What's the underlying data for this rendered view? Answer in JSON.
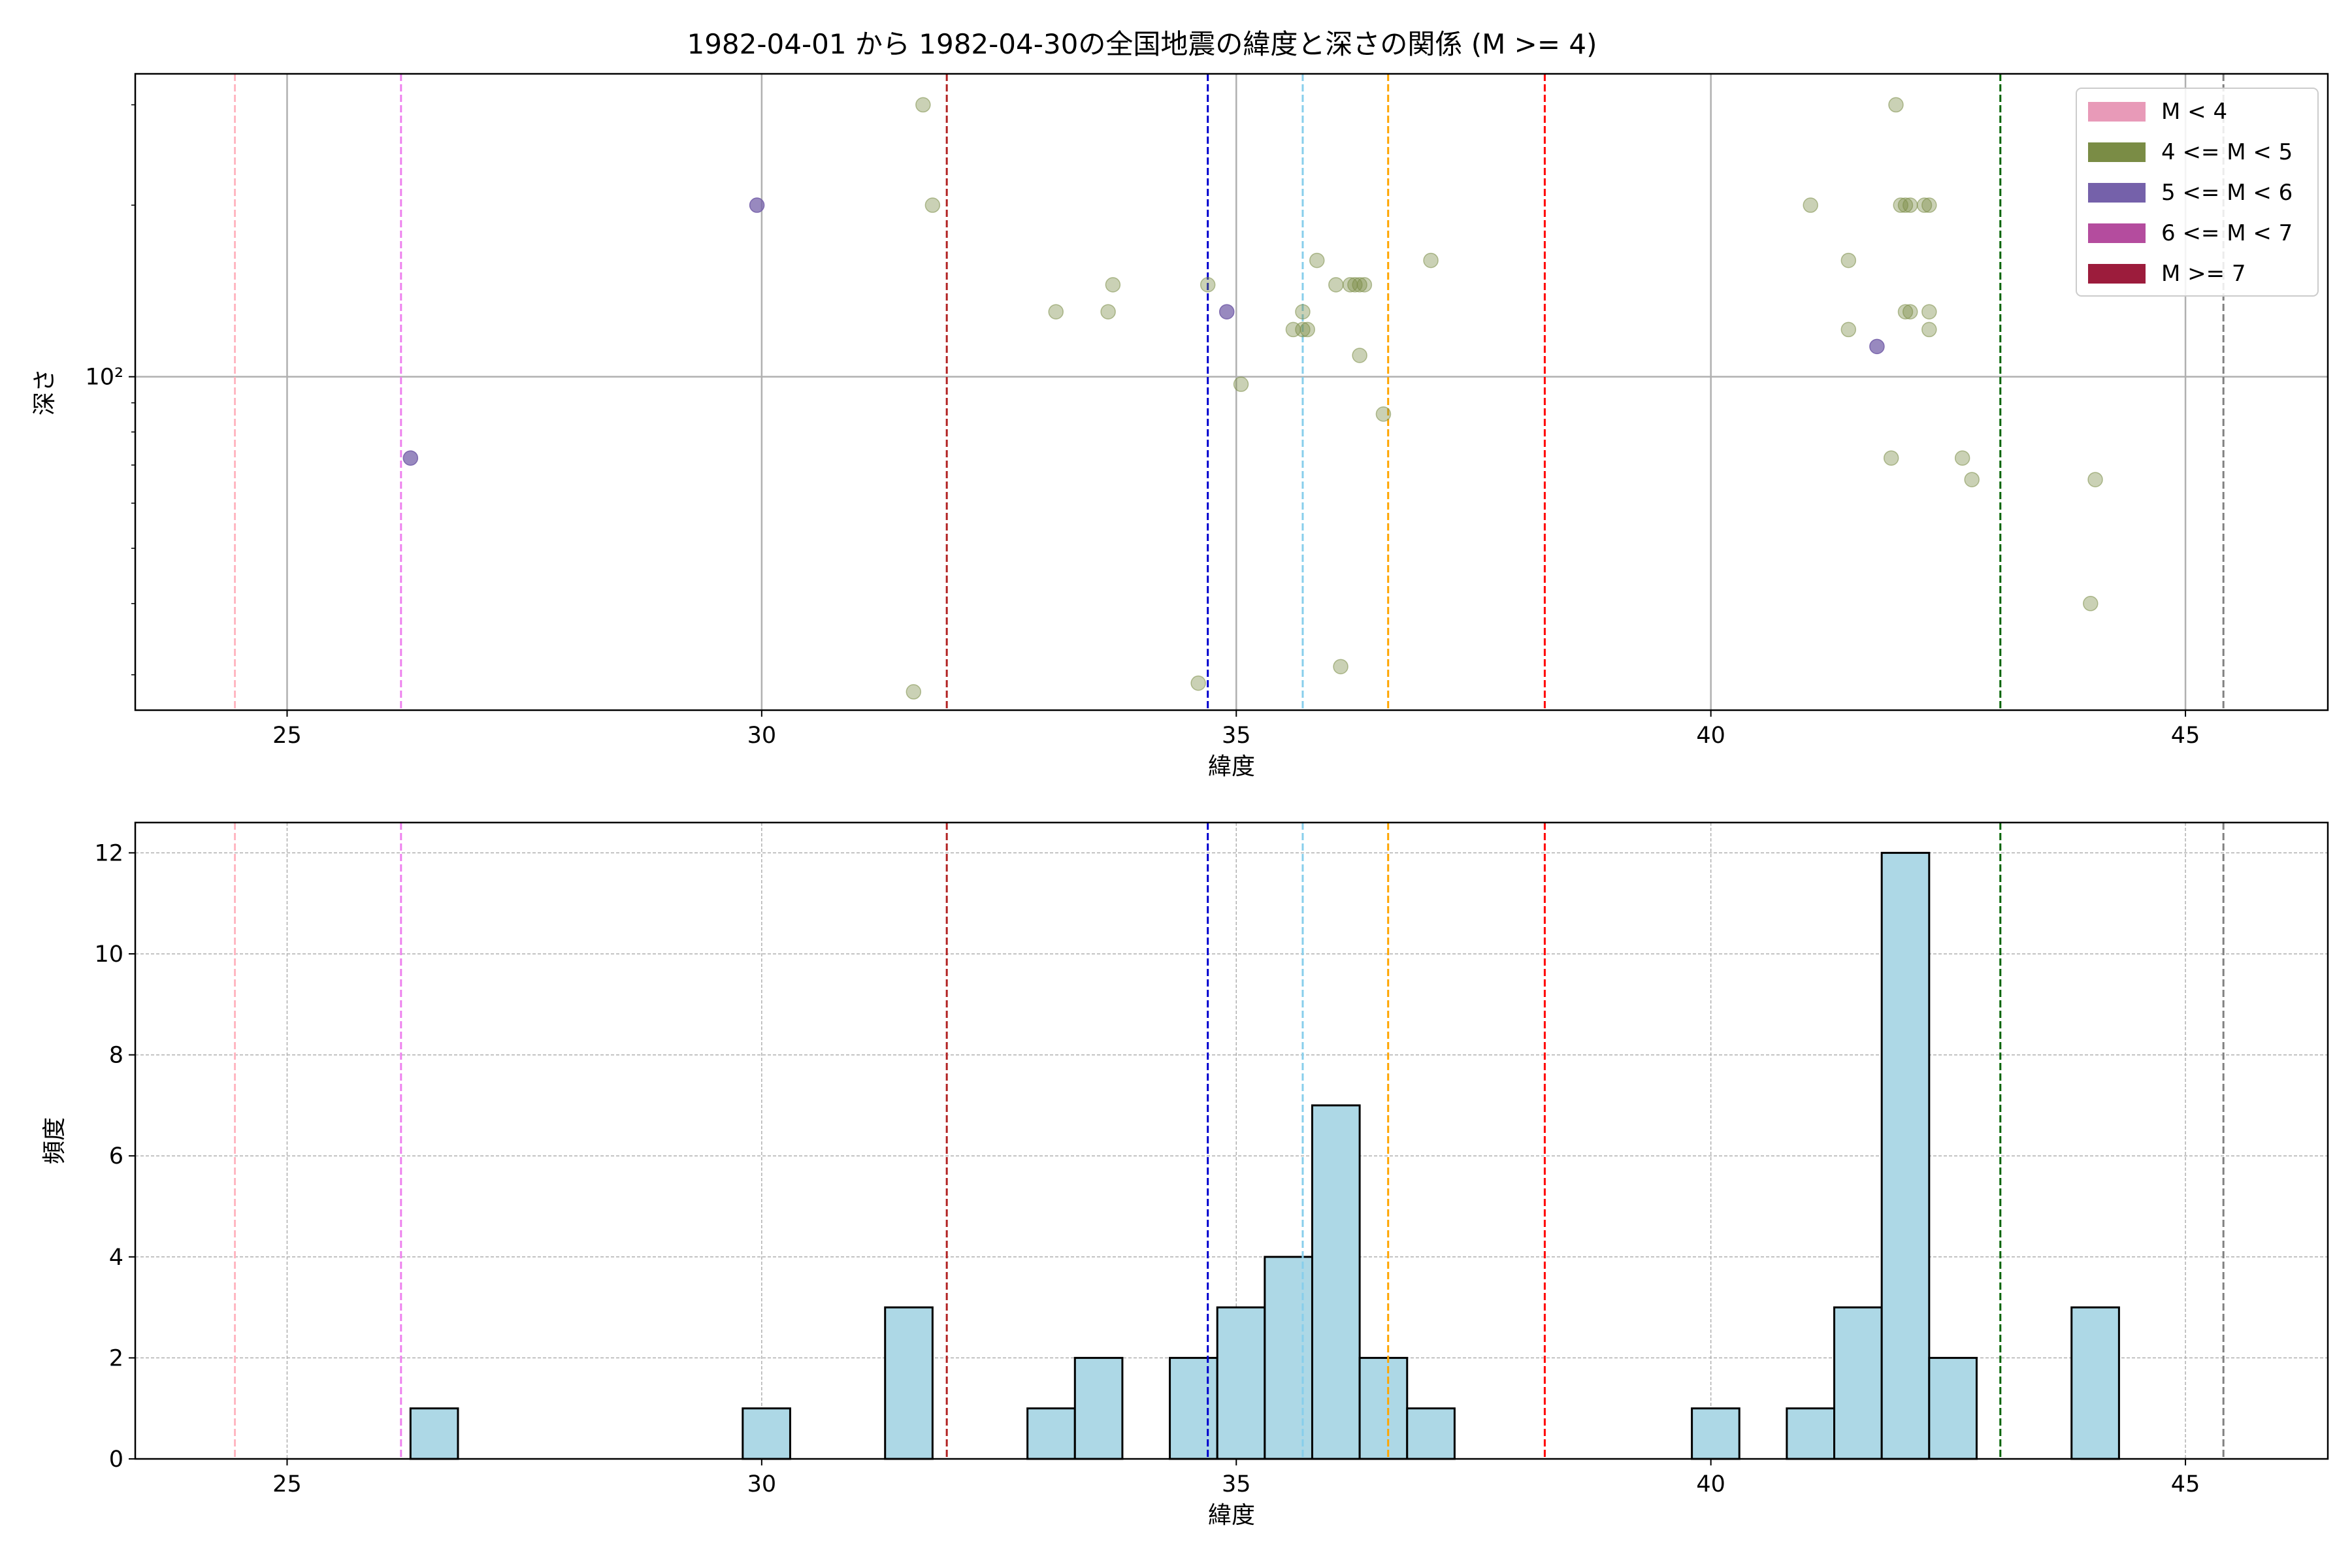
{
  "figure": {
    "title": "1982-04-01 から 1982-04-30の全国地震の緯度と深さの関係 (M >= 4)"
  },
  "chart_data": [
    {
      "type": "scatter",
      "xlabel": "緯度",
      "ylabel": "深さ",
      "xlim": [
        23.4,
        46.5
      ],
      "ylim": [
        26,
        340
      ],
      "yscale": "log",
      "x_ticks": [
        25,
        30,
        35,
        40,
        45
      ],
      "y_tick_labels": [
        {
          "value": 100,
          "label": "10²"
        }
      ],
      "grid": true,
      "legend_position": "top-right",
      "legend": [
        {
          "label": "M < 4",
          "color": "#e89ab8"
        },
        {
          "label": "4 <= M < 5",
          "color": "#7a8c45"
        },
        {
          "label": "5 <= M < 6",
          "color": "#7561aa"
        },
        {
          "label": "6 <= M < 7",
          "color": "#b44c9e"
        },
        {
          "label": "M >= 7",
          "color": "#9c1c3c"
        }
      ],
      "series": [
        {
          "name": "4 <= M < 5",
          "color": "#7a8c45",
          "points": [
            [
              31.7,
              300
            ],
            [
              31.8,
              200
            ],
            [
              31.6,
              28
            ],
            [
              33.1,
              130
            ],
            [
              33.65,
              130
            ],
            [
              33.7,
              145
            ],
            [
              34.6,
              29
            ],
            [
              34.7,
              145
            ],
            [
              35.05,
              97
            ],
            [
              35.6,
              121
            ],
            [
              35.7,
              130
            ],
            [
              35.7,
              121
            ],
            [
              35.75,
              121
            ],
            [
              35.85,
              160
            ],
            [
              36.05,
              145
            ],
            [
              36.1,
              31
            ],
            [
              36.2,
              145
            ],
            [
              36.25,
              145
            ],
            [
              36.3,
              145
            ],
            [
              36.3,
              109
            ],
            [
              36.35,
              145
            ],
            [
              36.55,
              86
            ],
            [
              37.05,
              160
            ],
            [
              41.05,
              200
            ],
            [
              41.45,
              160
            ],
            [
              41.45,
              121
            ],
            [
              41.9,
              72
            ],
            [
              41.95,
              300
            ],
            [
              42.0,
              200
            ],
            [
              42.05,
              200
            ],
            [
              42.05,
              130
            ],
            [
              42.1,
              200
            ],
            [
              42.1,
              130
            ],
            [
              42.25,
              200
            ],
            [
              42.3,
              200
            ],
            [
              42.3,
              130
            ],
            [
              42.3,
              121
            ],
            [
              42.65,
              72
            ],
            [
              42.75,
              66
            ],
            [
              44.0,
              40
            ],
            [
              44.05,
              66
            ]
          ]
        },
        {
          "name": "5 <= M < 6",
          "color": "#7561aa",
          "points": [
            [
              26.3,
              72
            ],
            [
              29.95,
              200
            ],
            [
              34.9,
              130
            ],
            [
              41.75,
              113
            ]
          ]
        }
      ],
      "reference_lines": [
        {
          "x": 24.45,
          "color": "#ffb6c1"
        },
        {
          "x": 26.2,
          "color": "#ee82ee"
        },
        {
          "x": 31.95,
          "color": "#b22222"
        },
        {
          "x": 34.7,
          "color": "#0000cd"
        },
        {
          "x": 35.7,
          "color": "#87ceeb"
        },
        {
          "x": 36.6,
          "color": "#ffa500"
        },
        {
          "x": 38.25,
          "color": "#ff0000"
        },
        {
          "x": 43.05,
          "color": "#006400"
        },
        {
          "x": 45.4,
          "color": "#808080"
        }
      ]
    },
    {
      "type": "bar",
      "xlabel": "緯度",
      "ylabel": "頻度",
      "xlim": [
        23.4,
        46.5
      ],
      "ylim": [
        0,
        12.6
      ],
      "x_ticks": [
        25,
        30,
        35,
        40,
        45
      ],
      "y_ticks": [
        0,
        2,
        4,
        6,
        8,
        10,
        12
      ],
      "grid": true,
      "bar_color": "#add8e6",
      "bar_edge_color": "#000000",
      "bin_width": 0.5,
      "bins": [
        {
          "x0": 26.3,
          "count": 1
        },
        {
          "x0": 29.8,
          "count": 1
        },
        {
          "x0": 31.3,
          "count": 3
        },
        {
          "x0": 32.8,
          "count": 1
        },
        {
          "x0": 33.3,
          "count": 2
        },
        {
          "x0": 34.3,
          "count": 2
        },
        {
          "x0": 34.8,
          "count": 3
        },
        {
          "x0": 35.3,
          "count": 4
        },
        {
          "x0": 35.8,
          "count": 7
        },
        {
          "x0": 36.3,
          "count": 2
        },
        {
          "x0": 36.8,
          "count": 1
        },
        {
          "x0": 39.8,
          "count": 1
        },
        {
          "x0": 40.8,
          "count": 1
        },
        {
          "x0": 41.3,
          "count": 3
        },
        {
          "x0": 41.8,
          "count": 12
        },
        {
          "x0": 42.3,
          "count": 2
        },
        {
          "x0": 43.8,
          "count": 3
        }
      ],
      "reference_lines": [
        {
          "x": 24.45,
          "color": "#ffb6c1"
        },
        {
          "x": 26.2,
          "color": "#ee82ee"
        },
        {
          "x": 31.95,
          "color": "#b22222"
        },
        {
          "x": 34.7,
          "color": "#0000cd"
        },
        {
          "x": 35.7,
          "color": "#87ceeb"
        },
        {
          "x": 36.6,
          "color": "#ffa500"
        },
        {
          "x": 38.25,
          "color": "#ff0000"
        },
        {
          "x": 43.05,
          "color": "#006400"
        },
        {
          "x": 45.4,
          "color": "#808080"
        }
      ]
    }
  ]
}
